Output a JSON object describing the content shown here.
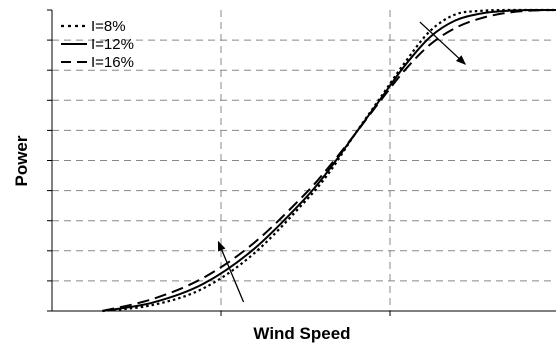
{
  "chart_data": {
    "type": "line",
    "title": "",
    "xlabel": "Wind Speed",
    "ylabel": "Power",
    "xlim": [
      0,
      10
    ],
    "ylim": [
      0,
      10
    ],
    "grid": true,
    "legend_position": "top-left",
    "series": [
      {
        "name": "I=8%",
        "dash": "dotted",
        "x": [
          1.0,
          2.0,
          3.0,
          4.0,
          5.0,
          5.5,
          6.0,
          6.5,
          7.0,
          7.5,
          8.0,
          8.5,
          9.0,
          9.5,
          10.0
        ],
        "y": [
          0.0,
          0.2,
          0.75,
          1.9,
          3.6,
          4.6,
          5.85,
          7.05,
          8.25,
          9.3,
          9.85,
          9.97,
          10.0,
          10.0,
          10.0
        ]
      },
      {
        "name": "I=12%",
        "dash": "solid",
        "x": [
          1.0,
          2.0,
          3.0,
          4.0,
          5.0,
          5.5,
          6.0,
          6.5,
          7.0,
          7.5,
          8.0,
          8.5,
          9.0,
          9.5,
          10.0
        ],
        "y": [
          0.0,
          0.28,
          0.9,
          2.05,
          3.7,
          4.7,
          5.85,
          7.0,
          8.15,
          9.1,
          9.65,
          9.88,
          9.97,
          10.0,
          10.0
        ]
      },
      {
        "name": "I=16%",
        "dash": "dashed",
        "x": [
          1.0,
          2.0,
          3.0,
          4.0,
          5.0,
          5.5,
          6.0,
          6.5,
          7.0,
          7.5,
          8.0,
          8.5,
          9.0,
          9.5,
          10.0
        ],
        "y": [
          0.0,
          0.4,
          1.1,
          2.25,
          3.85,
          4.8,
          5.85,
          6.95,
          8.0,
          8.85,
          9.4,
          9.72,
          9.9,
          9.98,
          10.0
        ]
      }
    ],
    "arrows": [
      {
        "from": [
          3.8,
          0.3
        ],
        "to": [
          3.3,
          2.3
        ]
      },
      {
        "from": [
          7.3,
          9.6
        ],
        "to": [
          8.2,
          8.2
        ]
      }
    ]
  }
}
